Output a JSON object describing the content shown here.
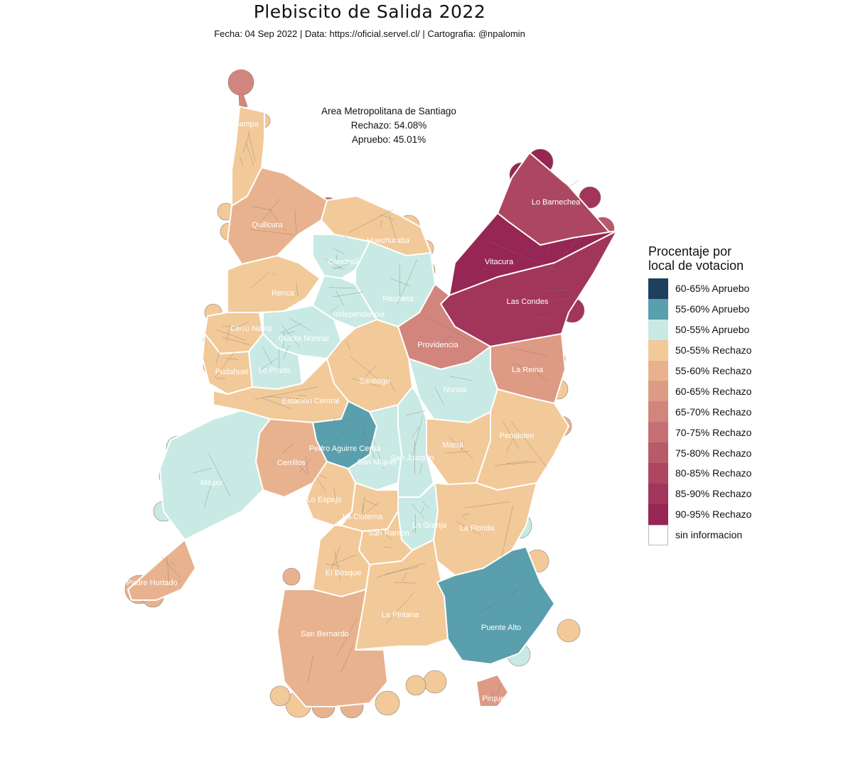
{
  "title": "Plebiscito de Salida 2022",
  "subtitle": "Fecha: 04 Sep 2022 | Data: https://oficial.servel.cl/ | Cartografia: @npalomin",
  "summary": {
    "region": "Area Metropolitana de Santiago",
    "rechazo": "Rechazo: 54.08%",
    "apruebo": "Apruebo: 45.01%"
  },
  "legend": {
    "title_line1": "Procentaje por",
    "title_line2": "local de votacion",
    "items": [
      {
        "label": "60-65% Apruebo",
        "color": "#1f3f5f"
      },
      {
        "label": "55-60% Apruebo",
        "color": "#5a9fae"
      },
      {
        "label": "50-55% Apruebo",
        "color": "#c9eae4"
      },
      {
        "label": "50-55% Rechazo",
        "color": "#f2c998"
      },
      {
        "label": "55-60% Rechazo",
        "color": "#e8b28e"
      },
      {
        "label": "60-65% Rechazo",
        "color": "#dd9a84"
      },
      {
        "label": "65-70% Rechazo",
        "color": "#d2857c"
      },
      {
        "label": "70-75% Rechazo",
        "color": "#c66f74"
      },
      {
        "label": "75-80% Rechazo",
        "color": "#b95a6a"
      },
      {
        "label": "80-85% Rechazo",
        "color": "#ad4660"
      },
      {
        "label": "85-90% Rechazo",
        "color": "#a2355a"
      },
      {
        "label": "90-95% Rechazo",
        "color": "#962653"
      },
      {
        "label": "sin informacion",
        "color": "#ffffff"
      }
    ]
  },
  "comunas": [
    {
      "name": "Lampa",
      "fill": "#f2c998"
    },
    {
      "name": "Quilicura",
      "fill": "#e8b28e"
    },
    {
      "name": "Huechuraba",
      "fill": "#f2c998"
    },
    {
      "name": "Lo Barnechea",
      "fill": "#ad4660"
    },
    {
      "name": "Vitacura",
      "fill": "#962653"
    },
    {
      "name": "Las Condes",
      "fill": "#a2355a"
    },
    {
      "name": "Conchali",
      "fill": "#c9eae4"
    },
    {
      "name": "Renca",
      "fill": "#f2c998"
    },
    {
      "name": "Recoleta",
      "fill": "#c9eae4"
    },
    {
      "name": "Independencia",
      "fill": "#c9eae4"
    },
    {
      "name": "Cerro Navia",
      "fill": "#f2c998"
    },
    {
      "name": "Quinta Normal",
      "fill": "#c9eae4"
    },
    {
      "name": "Providencia",
      "fill": "#d2857c"
    },
    {
      "name": "Pudahuel",
      "fill": "#f2c998"
    },
    {
      "name": "Lo Prado",
      "fill": "#c9eae4"
    },
    {
      "name": "Santiago",
      "fill": "#f2c998"
    },
    {
      "name": "La Reina",
      "fill": "#dd9a84"
    },
    {
      "name": "Nunoa",
      "fill": "#c9eae4"
    },
    {
      "name": "Estacion Central",
      "fill": "#f2c998"
    },
    {
      "name": "Penalolen",
      "fill": "#f2c998"
    },
    {
      "name": "Pedro Aguirre Cerda",
      "fill": "#5a9fae"
    },
    {
      "name": "Macul",
      "fill": "#f2c998"
    },
    {
      "name": "Cerrillos",
      "fill": "#e8b28e"
    },
    {
      "name": "San Miguel",
      "fill": "#c9eae4"
    },
    {
      "name": "San Joaquin",
      "fill": "#c9eae4"
    },
    {
      "name": "Maipu",
      "fill": "#c9eae4"
    },
    {
      "name": "Lo Espejo",
      "fill": "#f2c998"
    },
    {
      "name": "La Cisterna",
      "fill": "#f2c998"
    },
    {
      "name": "La Granja",
      "fill": "#c9eae4"
    },
    {
      "name": "La Florida",
      "fill": "#f2c998"
    },
    {
      "name": "San Ramon",
      "fill": "#f2c998"
    },
    {
      "name": "El Bosque",
      "fill": "#f2c998"
    },
    {
      "name": "Padre Hurtado",
      "fill": "#e8b28e"
    },
    {
      "name": "La Pintana",
      "fill": "#f2c998"
    },
    {
      "name": "Puente Alto",
      "fill": "#5a9fae"
    },
    {
      "name": "San Bernardo",
      "fill": "#e8b28e"
    },
    {
      "name": "Pirque",
      "fill": "#dd9a84"
    }
  ]
}
